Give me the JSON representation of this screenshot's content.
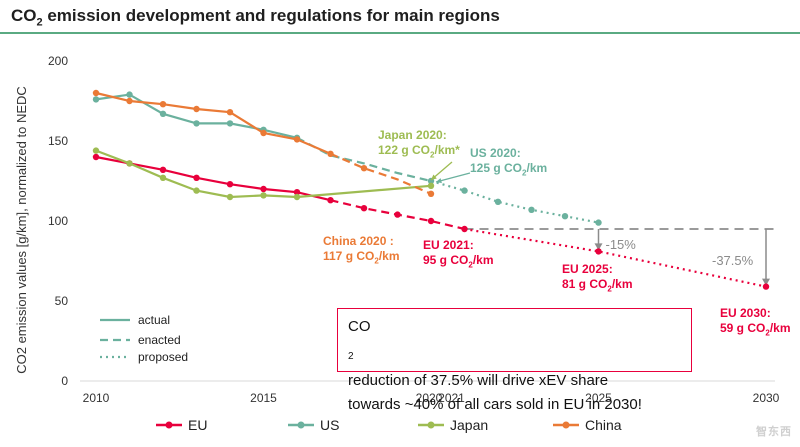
{
  "header": {
    "title_prefix": "CO",
    "title_sub": "2",
    "title_rest": " emission development and regulations for main regions"
  },
  "chart_data": {
    "type": "line",
    "title": "CO2 emission development and regulations for main regions",
    "ylabel": "CO2 emission values [g/km], normalized to NEDC",
    "xlabel": "",
    "ylim": [
      0,
      200
    ],
    "yticks": [
      "0",
      "50",
      "100",
      "150",
      "200"
    ],
    "xticks": [
      "2010",
      "2015",
      "2020",
      "2021",
      "2025",
      "2030"
    ],
    "series": [
      {
        "name": "EU",
        "color": "#e8003c",
        "actual": [
          [
            2010,
            140
          ],
          [
            2011,
            136
          ],
          [
            2012,
            132
          ],
          [
            2013,
            127
          ],
          [
            2014,
            123
          ],
          [
            2015,
            120
          ],
          [
            2016,
            118
          ],
          [
            2017,
            113
          ]
        ],
        "enacted": [
          [
            2017,
            113
          ],
          [
            2018,
            108
          ],
          [
            2019,
            104
          ],
          [
            2020,
            100
          ],
          [
            2021,
            95
          ]
        ],
        "proposed": [
          [
            2021,
            95
          ],
          [
            2025,
            81
          ],
          [
            2030,
            59
          ]
        ],
        "markers": [
          [
            2010,
            140
          ],
          [
            2011,
            136
          ],
          [
            2012,
            132
          ],
          [
            2013,
            127
          ],
          [
            2014,
            123
          ],
          [
            2015,
            120
          ],
          [
            2016,
            118
          ],
          [
            2017,
            113
          ],
          [
            2018,
            108
          ],
          [
            2019,
            104
          ],
          [
            2020,
            100
          ],
          [
            2021,
            95
          ],
          [
            2025,
            81
          ],
          [
            2030,
            59
          ]
        ]
      },
      {
        "name": "US",
        "color": "#6bb19e",
        "actual": [
          [
            2010,
            176
          ],
          [
            2011,
            179
          ],
          [
            2012,
            167
          ],
          [
            2013,
            161
          ],
          [
            2014,
            161
          ],
          [
            2015,
            157
          ],
          [
            2016,
            152
          ]
        ],
        "enacted": [
          [
            2016,
            152
          ],
          [
            2017,
            141
          ],
          [
            2018,
            136
          ],
          [
            2019,
            130
          ],
          [
            2020,
            125
          ]
        ],
        "proposed": [
          [
            2020,
            125
          ],
          [
            2021,
            119
          ],
          [
            2022,
            112
          ],
          [
            2023,
            107
          ],
          [
            2024,
            103
          ],
          [
            2025,
            99
          ]
        ],
        "markers": [
          [
            2010,
            176
          ],
          [
            2011,
            179
          ],
          [
            2012,
            167
          ],
          [
            2013,
            161
          ],
          [
            2014,
            161
          ],
          [
            2015,
            157
          ],
          [
            2016,
            152
          ],
          [
            2020,
            125
          ],
          [
            2021,
            119
          ],
          [
            2022,
            112
          ],
          [
            2023,
            107
          ],
          [
            2024,
            103
          ],
          [
            2025,
            99
          ]
        ]
      },
      {
        "name": "Japan",
        "color": "#9ebc52",
        "actual": [
          [
            2010,
            144
          ],
          [
            2011,
            136
          ],
          [
            2012,
            127
          ],
          [
            2013,
            119
          ],
          [
            2014,
            115
          ],
          [
            2015,
            116
          ],
          [
            2016,
            115
          ],
          [
            2020,
            122
          ]
        ],
        "enacted": [],
        "proposed": [],
        "markers": [
          [
            2010,
            144
          ],
          [
            2011,
            136
          ],
          [
            2012,
            127
          ],
          [
            2013,
            119
          ],
          [
            2014,
            115
          ],
          [
            2015,
            116
          ],
          [
            2016,
            115
          ],
          [
            2020,
            122
          ]
        ]
      },
      {
        "name": "China",
        "color": "#ea7a36",
        "actual": [
          [
            2010,
            180
          ],
          [
            2011,
            175
          ],
          [
            2012,
            173
          ],
          [
            2013,
            170
          ],
          [
            2014,
            168
          ],
          [
            2015,
            155
          ],
          [
            2016,
            151
          ],
          [
            2017,
            142
          ]
        ],
        "enacted": [
          [
            2017,
            142
          ],
          [
            2018,
            133
          ],
          [
            2019,
            126
          ],
          [
            2020,
            117
          ]
        ],
        "proposed": [],
        "markers": [
          [
            2010,
            180
          ],
          [
            2011,
            175
          ],
          [
            2012,
            173
          ],
          [
            2013,
            170
          ],
          [
            2014,
            168
          ],
          [
            2015,
            155
          ],
          [
            2016,
            151
          ],
          [
            2017,
            142
          ],
          [
            2018,
            133
          ],
          [
            2020,
            117
          ]
        ]
      }
    ],
    "line_styles": [
      {
        "label": "actual",
        "style": "solid"
      },
      {
        "label": "enacted",
        "style": "dashed"
      },
      {
        "label": "proposed",
        "style": "dotted"
      }
    ],
    "reference_line": {
      "value": 95,
      "from": 2021,
      "to": 2030,
      "color": "#9a9a9a"
    },
    "reductions": [
      {
        "label": "-15%",
        "x": 2025,
        "from": 95,
        "to": 81
      },
      {
        "label": "-37.5%",
        "x": 2030,
        "from": 95,
        "to": 59
      }
    ],
    "annotations": {
      "japan_2020": {
        "line1": "Japan 2020:",
        "line2_pre": "122 g CO",
        "line2_post": "/km*"
      },
      "us_2020": {
        "line1": "US 2020:",
        "line2_pre": "125 g CO",
        "line2_post": "/km"
      },
      "china_2020": {
        "line1": "China 2020 :",
        "line2_pre": "117 g CO",
        "line2_post": "/km"
      },
      "eu_2021": {
        "line1": "EU 2021:",
        "line2_pre": "95 g CO",
        "line2_post": "/km"
      },
      "eu_2025": {
        "line1": "EU 2025:",
        "line2_pre": "81 g CO",
        "line2_post": "/km"
      },
      "eu_2030": {
        "line1": "EU 2030:",
        "line2_pre": "59 g CO",
        "line2_post": "/km"
      },
      "sub2": "2"
    },
    "callout": {
      "line1_pre": "CO",
      "line1_post": " reduction of 37.5% will drive xEV share",
      "line2": "towards ~40% of all cars sold in EU in 2030!"
    }
  },
  "watermark": "智东西"
}
